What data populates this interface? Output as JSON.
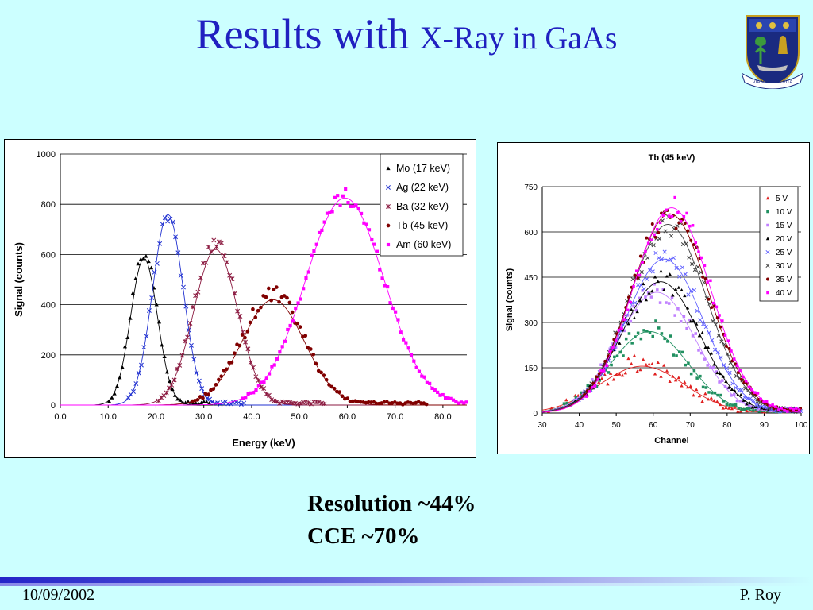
{
  "slide": {
    "title_main": "Results with ",
    "title_rest": "X-Ray in GaAs",
    "results_line1": "Resolution ~44%",
    "results_line2": "CCE ~70%",
    "footer_date": "10/09/2002",
    "footer_author": "P. Roy",
    "crest_motto": "VIA VERITAS VITA",
    "colors": {
      "background": "#ccffff",
      "title": "#2020c0"
    }
  },
  "chart_data": [
    {
      "type": "scatter",
      "title": "",
      "xlabel": "Energy (keV)",
      "ylabel": "Signal (counts)",
      "xlim": [
        0,
        85
      ],
      "ylim": [
        0,
        1000
      ],
      "x_ticks": [
        "0.0",
        "10.0",
        "20.0",
        "30.0",
        "40.0",
        "50.0",
        "60.0",
        "70.0",
        "80.0"
      ],
      "y_ticks": [
        "0",
        "200",
        "400",
        "600",
        "800",
        "1000"
      ],
      "grid": true,
      "legend_position": "top-right",
      "series": [
        {
          "name": "Mo (17 keV)",
          "color": "#000000",
          "marker": "triangle",
          "peak_x": 17.5,
          "peak_y": 600,
          "sigma": 2.8,
          "fit_peak_y": 585
        },
        {
          "name": "Ag (22 keV)",
          "color": "#2030d0",
          "marker": "x",
          "peak_x": 22.5,
          "peak_y": 760,
          "sigma": 3.2,
          "fit_peak_y": 760
        },
        {
          "name": "Ba (32 keV)",
          "color": "#8b1a40",
          "marker": "star",
          "peak_x": 32.5,
          "peak_y": 640,
          "sigma": 4.6,
          "fit_peak_y": 620
        },
        {
          "name": "Tb (45 keV)",
          "color": "#800000",
          "marker": "circle",
          "peak_x": 44.5,
          "peak_y": 440,
          "sigma": 6.5,
          "fit_peak_y": 420
        },
        {
          "name": "Am (60 keV)",
          "color": "#ff00ff",
          "marker": "square",
          "peak_x": 59.5,
          "peak_y": 830,
          "sigma": 8.2,
          "fit_peak_y": 825
        }
      ]
    },
    {
      "type": "scatter",
      "title": "Tb (45 keV)",
      "xlabel": "Channel",
      "ylabel": "Signal (counts)",
      "xlim": [
        30,
        100
      ],
      "ylim": [
        0,
        750
      ],
      "x_ticks": [
        "30",
        "40",
        "50",
        "60",
        "70",
        "80",
        "90",
        "100"
      ],
      "y_ticks": [
        "0",
        "150",
        "300",
        "450",
        "600",
        "750"
      ],
      "grid": true,
      "legend_position": "top-right",
      "series": [
        {
          "name": "5 V",
          "color": "#e02020",
          "marker": "triangle",
          "peak_x": 57,
          "peak_y": 155,
          "sigma": 11.5
        },
        {
          "name": "10 V",
          "color": "#209060",
          "marker": "square",
          "peak_x": 59,
          "peak_y": 270,
          "sigma": 10.5
        },
        {
          "name": "15 V",
          "color": "#c080ff",
          "marker": "square",
          "peak_x": 61,
          "peak_y": 400,
          "sigma": 10.5
        },
        {
          "name": "20 V",
          "color": "#000000",
          "marker": "triangle",
          "peak_x": 62,
          "peak_y": 435,
          "sigma": 10.5
        },
        {
          "name": "25 V",
          "color": "#6060ff",
          "marker": "x",
          "peak_x": 63,
          "peak_y": 510,
          "sigma": 10.5
        },
        {
          "name": "30 V",
          "color": "#404040",
          "marker": "x",
          "peak_x": 64,
          "peak_y": 625,
          "sigma": 10.5
        },
        {
          "name": "35 V",
          "color": "#800000",
          "marker": "circle",
          "peak_x": 64.5,
          "peak_y": 660,
          "sigma": 10.5
        },
        {
          "name": "40 V",
          "color": "#ff00ff",
          "marker": "square",
          "peak_x": 65,
          "peak_y": 680,
          "sigma": 10.5
        }
      ]
    }
  ]
}
